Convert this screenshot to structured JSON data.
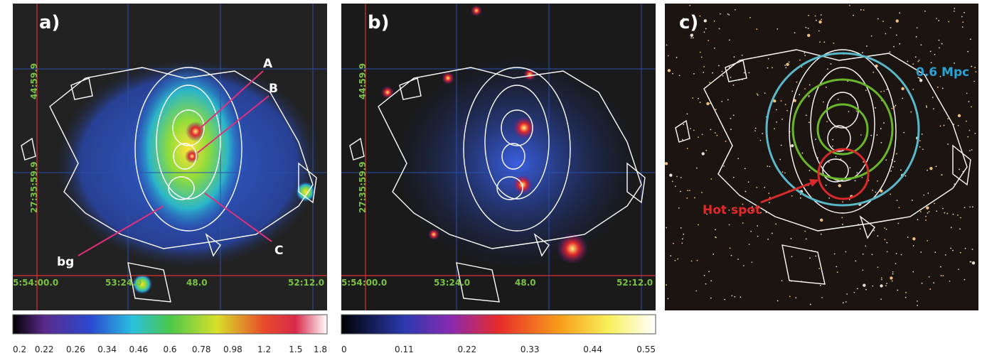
{
  "panels": [
    {
      "label": "a)",
      "markers": [
        "A",
        "B",
        "C",
        "bg"
      ],
      "dec_labels": [
        "44:59.9",
        "27:35:59.9"
      ],
      "ra_labels": [
        "5:54:00.0",
        "53:24.0",
        "48.0",
        "52:12.0"
      ],
      "colorbar_ticks": [
        "0.2",
        "0.22",
        "0.26",
        "0.34",
        "0.46",
        "0.6",
        "0.78",
        "0.98",
        "1.2",
        "1.5",
        "1.8"
      ]
    },
    {
      "label": "b)",
      "dec_labels": [
        "44:59.9",
        "27:35:59.9"
      ],
      "ra_labels": [
        "5:54:00.0",
        "53:24.0",
        "48.0",
        "52:12.0"
      ],
      "colorbar_ticks": [
        "0",
        "0.11",
        "0.22",
        "0.33",
        "0.44",
        "0.55"
      ]
    },
    {
      "label": "c)",
      "scale_label": "0.6 Mpc",
      "hot_spot_label": "Hot spot"
    }
  ]
}
